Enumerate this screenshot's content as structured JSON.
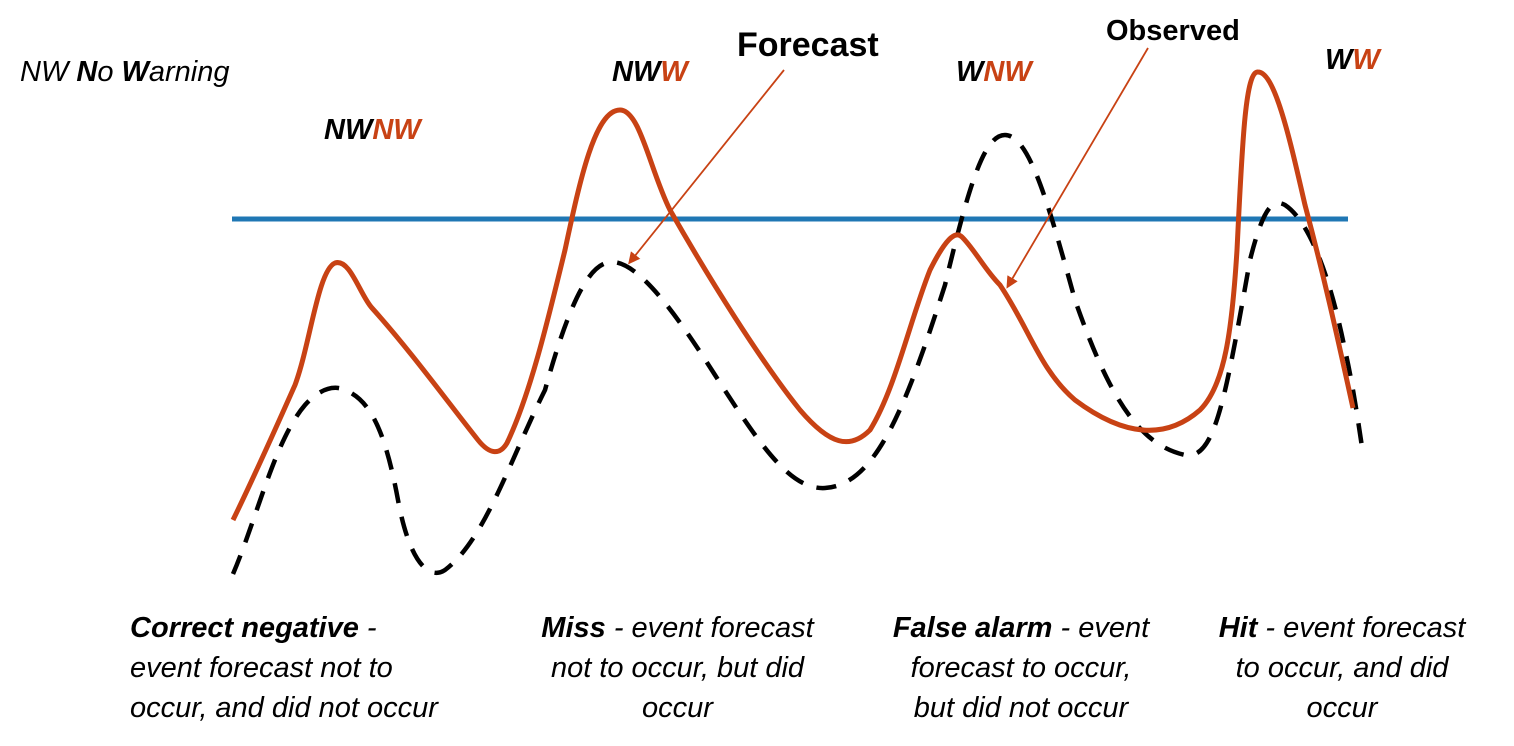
{
  "legend": {
    "abbr": "NW",
    "n": "N",
    "o": "o",
    "w": "W",
    "arning": "arning"
  },
  "codes": [
    {
      "id": "nwnw",
      "first": "NW",
      "second": "NW"
    },
    {
      "id": "nww",
      "first": "NW",
      "second": "W"
    },
    {
      "id": "wnw",
      "first": "W",
      "second": "NW"
    },
    {
      "id": "ww",
      "first": "W",
      "second": "W"
    }
  ],
  "callouts": {
    "forecast": "Forecast",
    "observed": "Observed"
  },
  "descriptions": [
    {
      "id": "correct-negative",
      "term": "Correct negative",
      "sep": " -",
      "lines": [
        "event forecast not to",
        "occur, and did not occur"
      ],
      "align": "left"
    },
    {
      "id": "miss",
      "term": "Miss",
      "sep": " - event forecast",
      "lines": [
        "not to occur, but did",
        "occur"
      ],
      "align": "center"
    },
    {
      "id": "false-alarm",
      "term": "False alarm",
      "sep": " - event",
      "lines": [
        "forecast to occur,",
        "but did not occur"
      ],
      "align": "center"
    },
    {
      "id": "hit",
      "term": "Hit",
      "sep": " - event forecast",
      "lines": [
        "to occur, and did",
        "occur"
      ],
      "align": "center"
    }
  ],
  "colors": {
    "forecast_line": "#c84214",
    "observed_line": "#000000",
    "threshold_line": "#1f77b4",
    "arrow": "#c84214"
  }
}
